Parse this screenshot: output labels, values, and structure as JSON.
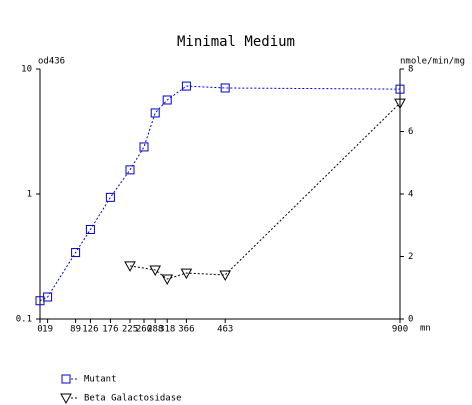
{
  "chart_data": {
    "type": "line",
    "title": "Minimal Medium",
    "y_label": "od436",
    "y2_label": "nmole/min/mg",
    "x_label": "mn",
    "xlim": [
      0,
      900
    ],
    "xticks": [
      0,
      19,
      89,
      126,
      176,
      225,
      260,
      288,
      318,
      366,
      463,
      900
    ],
    "ylim": [
      0.1,
      10
    ],
    "yticks": [
      0.1,
      1,
      10
    ],
    "y_scale": "log",
    "y2lim": [
      0,
      8
    ],
    "y2ticks": [
      0,
      2,
      4,
      6,
      8
    ],
    "legend": "bottom-left",
    "series": [
      {
        "name": "Mutant",
        "color": "#0000cc",
        "marker": "square",
        "x": [
          0,
          19,
          89,
          126,
          176,
          225,
          260,
          288,
          318,
          366,
          463,
          900
        ],
        "values": [
          0.14,
          0.15,
          0.34,
          0.52,
          0.94,
          1.56,
          2.38,
          4.45,
          5.65,
          7.3,
          7.05,
          6.9
        ]
      },
      {
        "name": "Beta Galactosidase",
        "color": "#000000",
        "marker": "triangle",
        "axis": "y2",
        "x": [
          225,
          288,
          318,
          366,
          463,
          900
        ],
        "values": [
          1.7,
          1.57,
          1.28,
          1.47,
          1.41,
          6.91
        ]
      }
    ]
  }
}
